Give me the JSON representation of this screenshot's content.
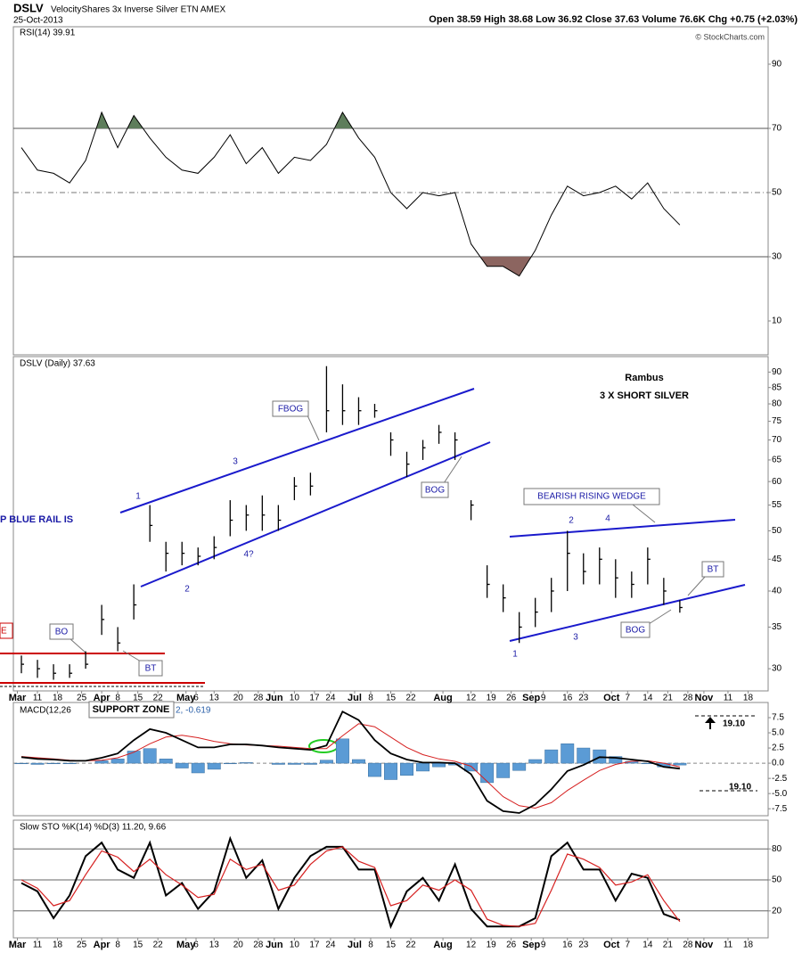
{
  "header": {
    "symbol": "DSLV",
    "name": "VelocityShares 3x Inverse Silver ETN AMEX",
    "date": "25-Oct-2013",
    "quote": "Open 38.59  High 38.68  Low 36.92  Close 37.63  Volume 76.6K  Chg +0.75 (+2.03%)",
    "credit": "© StockCharts.com"
  },
  "chart_data": [
    {
      "type": "line",
      "title": "RSI(14) 39.91",
      "color": "#000000",
      "overbought_color": "#5e7d5b",
      "oversold_color": "#8c6560",
      "x": [
        2,
        6,
        10,
        14,
        18,
        22,
        26,
        30,
        34,
        38,
        42,
        46,
        50,
        54,
        58,
        62,
        66,
        70,
        74,
        78,
        82,
        86,
        90,
        94,
        98,
        102,
        106,
        110,
        114,
        118,
        122,
        126,
        130,
        134,
        138,
        142,
        146,
        150,
        154,
        158,
        162,
        166
      ],
      "values": [
        64,
        57,
        56,
        53,
        60,
        75,
        64,
        74,
        67,
        61,
        57,
        56,
        61,
        68,
        59,
        64,
        56,
        61,
        60,
        65,
        75,
        67,
        61,
        50,
        45,
        50,
        49,
        50,
        34,
        27,
        27,
        24,
        32,
        43,
        52,
        49,
        50,
        52,
        48,
        53,
        45,
        39.91
      ],
      "xlim": [
        0,
        188
      ],
      "ylim": [
        0,
        100
      ],
      "yticks": [
        90,
        70,
        50,
        30,
        10
      ],
      "levels": [
        70,
        30
      ],
      "dashed_levels": [
        50
      ]
    },
    {
      "type": "ohlc",
      "title": "DSLV (Daily) 37.63",
      "color": "#000000",
      "log_scale": true,
      "x": [
        2,
        6,
        10,
        14,
        18,
        22,
        26,
        30,
        34,
        38,
        42,
        46,
        50,
        54,
        58,
        62,
        66,
        70,
        74,
        78,
        82,
        86,
        90,
        94,
        98,
        102,
        106,
        110,
        114,
        118,
        122,
        126,
        130,
        134,
        138,
        142,
        146,
        150,
        154,
        158,
        162,
        166
      ],
      "high": [
        31.5,
        31,
        30.5,
        30.5,
        32,
        38,
        35,
        41,
        55,
        48,
        48,
        47,
        49,
        56,
        55,
        57,
        55,
        61,
        62,
        92,
        86,
        82,
        80,
        72,
        67,
        70,
        74,
        72,
        56,
        44,
        41,
        37,
        39,
        42,
        50,
        46,
        47,
        45,
        43,
        47,
        42,
        38.68
      ],
      "low": [
        29.5,
        29,
        28.8,
        29,
        30,
        34,
        32,
        36,
        48,
        43,
        44,
        44,
        45,
        49,
        50,
        50,
        50,
        56,
        57,
        72,
        74,
        74,
        76,
        66,
        61,
        65,
        69,
        65,
        52,
        39,
        37,
        33,
        35,
        37,
        40,
        41,
        41,
        39,
        39,
        41,
        38,
        36.92
      ],
      "close": [
        30.5,
        30,
        29.5,
        29.5,
        30.5,
        36,
        33,
        38,
        51,
        46,
        46,
        45.5,
        47,
        52,
        53,
        53,
        52,
        59,
        59,
        78,
        78,
        78,
        78,
        70,
        64,
        68,
        72,
        70,
        55,
        41,
        39,
        35,
        37,
        40,
        46,
        43,
        45,
        42,
        41,
        45,
        40,
        37.63
      ],
      "xlim": [
        0,
        188
      ],
      "ylim": [
        28,
        95
      ],
      "yticks": [
        30,
        35,
        40,
        45,
        50,
        55,
        60,
        65,
        70,
        75,
        80,
        85,
        90
      ],
      "xticks": [
        {
          "value": 1,
          "label": "Mar"
        },
        {
          "value": 6,
          "label": "11"
        },
        {
          "value": 11,
          "label": "18"
        },
        {
          "value": 17,
          "label": "25"
        },
        {
          "value": 22,
          "label": "Apr"
        },
        {
          "value": 26,
          "label": "8"
        },
        {
          "value": 31,
          "label": "15"
        },
        {
          "value": 36,
          "label": "22"
        },
        {
          "value": 43,
          "label": "May"
        },
        {
          "value": 45.5,
          "label": "6"
        },
        {
          "value": 50,
          "label": "13"
        },
        {
          "value": 56,
          "label": "20"
        },
        {
          "value": 61,
          "label": "28"
        },
        {
          "value": 65,
          "label": "Jun"
        },
        {
          "value": 70,
          "label": "10"
        },
        {
          "value": 75,
          "label": "17"
        },
        {
          "value": 79,
          "label": "24"
        },
        {
          "value": 85,
          "label": "Jul"
        },
        {
          "value": 89,
          "label": "8"
        },
        {
          "value": 94,
          "label": "15"
        },
        {
          "value": 99,
          "label": "22"
        },
        {
          "value": 107,
          "label": "Aug"
        },
        {
          "value": 114,
          "label": "12"
        },
        {
          "value": 119,
          "label": "19"
        },
        {
          "value": 124,
          "label": "26"
        },
        {
          "value": 129,
          "label": "Sep"
        },
        {
          "value": 132,
          "label": "9"
        },
        {
          "value": 138,
          "label": "16"
        },
        {
          "value": 142,
          "label": "23"
        },
        {
          "value": 149,
          "label": "Oct"
        },
        {
          "value": 153,
          "label": "7"
        },
        {
          "value": 158,
          "label": "14"
        },
        {
          "value": 163,
          "label": "21"
        },
        {
          "value": 168,
          "label": "28"
        },
        {
          "value": 172,
          "label": "Nov"
        },
        {
          "value": 178,
          "label": "11"
        },
        {
          "value": 183,
          "label": "18"
        }
      ],
      "annotations": [
        "Rambus",
        "3 X SHORT SILVER",
        "FBOG",
        "BOG",
        "BOG",
        "BT",
        "BT",
        "BO",
        "BEARISH RISING WEDGE",
        "P BLUE RAIL IS",
        "E",
        "SUPPORT ZONE",
        "1",
        "2",
        "3",
        "4?",
        "1",
        "2",
        "3",
        "4"
      ]
    },
    {
      "type": "macd",
      "title": "MACD(12,26",
      "title_tail": "2, -0.619",
      "macd_color": "#000000",
      "signal_color": "#d62020",
      "histogram_color": "#5b9bd5",
      "x": [
        2,
        6,
        10,
        14,
        18,
        22,
        26,
        30,
        34,
        38,
        42,
        46,
        50,
        54,
        58,
        62,
        66,
        70,
        74,
        78,
        82,
        86,
        90,
        94,
        98,
        102,
        106,
        110,
        114,
        118,
        122,
        126,
        130,
        134,
        138,
        142,
        146,
        150,
        154,
        158,
        162,
        166
      ],
      "macd": [
        1.0,
        0.7,
        0.6,
        0.4,
        0.4,
        0.9,
        1.6,
        3.8,
        5.6,
        5.0,
        3.8,
        2.6,
        2.6,
        3.1,
        3.1,
        2.9,
        2.6,
        2.4,
        2.2,
        2.9,
        8.5,
        7.1,
        3.8,
        1.6,
        0.6,
        0.1,
        0.1,
        0,
        -1.8,
        -6.2,
        -7.9,
        -8.2,
        -6.8,
        -4.3,
        -1.3,
        -0.3,
        1.0,
        0.9,
        0.6,
        0.3,
        -0.6,
        -0.9
      ],
      "signal": [
        1.1,
        0.9,
        0.7,
        0.5,
        0.4,
        0.5,
        0.9,
        1.8,
        3.2,
        4.3,
        4.6,
        4.2,
        3.6,
        3.2,
        3.0,
        2.9,
        2.8,
        2.6,
        2.4,
        2.4,
        4.5,
        6.5,
        6.0,
        4.3,
        2.6,
        1.4,
        0.7,
        0.3,
        -0.5,
        -3.0,
        -5.5,
        -7.0,
        -7.4,
        -6.5,
        -4.5,
        -2.8,
        -1.2,
        -0.2,
        0.3,
        0.4,
        0.0,
        -0.619
      ],
      "histogram": [
        -0.1,
        -0.2,
        -0.1,
        -0.1,
        0,
        0.4,
        0.7,
        2.0,
        2.4,
        0.7,
        -0.8,
        -1.6,
        -1.0,
        -0.1,
        0.1,
        0,
        -0.2,
        -0.2,
        -0.2,
        0.5,
        4.0,
        0.6,
        -2.2,
        -2.7,
        -2.0,
        -1.3,
        -0.6,
        -0.3,
        -1.3,
        -3.2,
        -2.4,
        -1.2,
        0.6,
        2.2,
        3.2,
        2.5,
        2.2,
        1.1,
        0.3,
        -0.1,
        -0.6,
        -0.3
      ],
      "xlim": [
        0,
        188
      ],
      "ylim": [
        -8.5,
        9.7
      ],
      "yticks": [
        7.5,
        {
          "value": 5,
          "label": "5.0"
        },
        2.5,
        {
          "value": 0,
          "label": "0.0"
        },
        -2.5,
        {
          "value": -5,
          "label": "-5.0"
        },
        -7.5
      ],
      "annotations": [
        "19.10",
        "19.10"
      ]
    },
    {
      "type": "line",
      "title": "Slow STO %K(14) %D(3) 11.20, 9.66",
      "x": [
        2,
        6,
        10,
        14,
        18,
        22,
        26,
        30,
        34,
        38,
        42,
        46,
        50,
        54,
        58,
        62,
        66,
        70,
        74,
        78,
        82,
        86,
        90,
        94,
        98,
        102,
        106,
        110,
        114,
        118,
        122,
        126,
        130,
        134,
        138,
        142,
        146,
        150,
        154,
        158,
        162,
        166
      ],
      "series": [
        {
          "color": "#000000",
          "values": [
            47,
            39,
            13,
            35,
            73,
            86,
            60,
            52,
            86,
            35,
            47,
            22,
            39,
            90,
            52,
            69,
            22,
            52,
            73,
            82,
            82,
            60,
            60,
            5,
            39,
            52,
            30,
            65,
            22,
            5,
            5,
            5,
            13,
            73,
            86,
            60,
            60,
            30,
            56,
            52,
            17,
            11.2
          ]
        },
        {
          "color": "#d62020",
          "values": [
            50,
            42,
            25,
            30,
            55,
            78,
            72,
            58,
            70,
            55,
            45,
            33,
            36,
            70,
            60,
            65,
            40,
            45,
            65,
            78,
            82,
            68,
            62,
            25,
            30,
            45,
            40,
            50,
            40,
            12,
            6,
            5,
            8,
            40,
            75,
            70,
            62,
            45,
            48,
            55,
            30,
            9.66
          ]
        }
      ],
      "xlim": [
        0,
        188
      ],
      "ylim": [
        0,
        100
      ],
      "yticks": [
        80,
        50,
        20
      ],
      "grid": true
    }
  ]
}
